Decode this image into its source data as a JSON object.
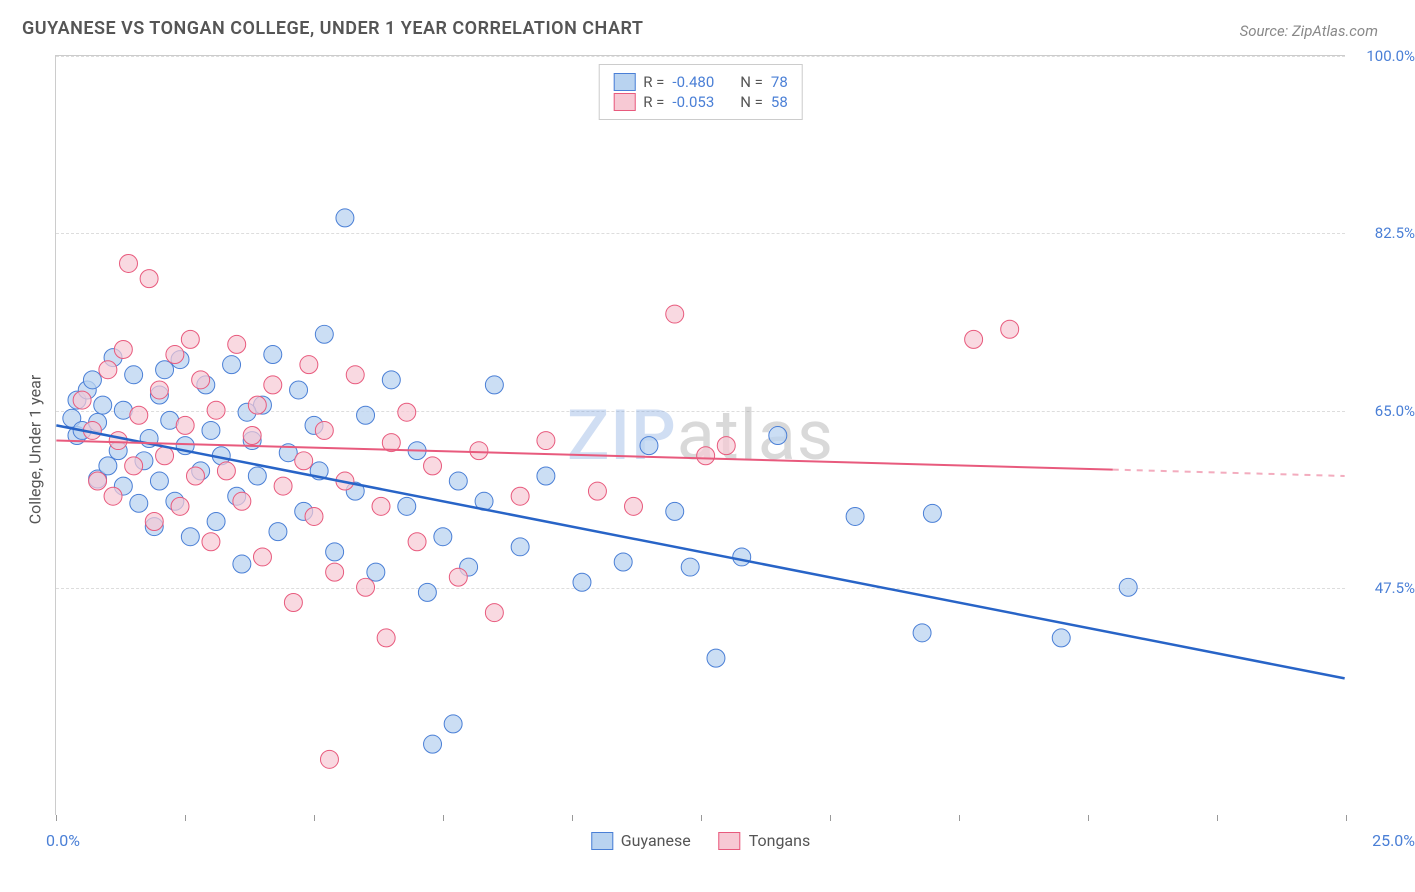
{
  "title": "GUYANESE VS TONGAN COLLEGE, UNDER 1 YEAR CORRELATION CHART",
  "source": "Source: ZipAtlas.com",
  "y_axis_label": "College, Under 1 year",
  "watermark_zip": "ZIP",
  "watermark_atlas": "atlas",
  "chart": {
    "type": "scatter",
    "background_color": "#ffffff",
    "grid_color": "#dddddd",
    "border_color": "#cccccc",
    "xlim": [
      0,
      25
    ],
    "ylim": [
      25,
      100
    ],
    "x_tick_positions": [
      0,
      2.5,
      5,
      7.5,
      10,
      12.5,
      15,
      17.5,
      20,
      22.5,
      25
    ],
    "x_axis_labels": {
      "left": "0.0%",
      "right": "25.0%"
    },
    "y_gridlines": [
      47.5,
      65.0,
      82.5,
      100.0
    ],
    "y_tick_labels": [
      "47.5%",
      "65.0%",
      "82.5%",
      "100.0%"
    ],
    "series": [
      {
        "name": "Guyanese",
        "marker_fill": "#b9d3f0",
        "marker_stroke": "#4a7fd6",
        "marker_radius": 9,
        "marker_opacity": 0.75,
        "line_color": "#2864c7",
        "line_width": 2.5,
        "trend": {
          "x0": 0,
          "y0": 63.5,
          "x1": 25,
          "y1": 38.5,
          "dash_after_x": null
        },
        "R_label": "R =",
        "R_value": "-0.480",
        "N_label": "N =",
        "N_value": "78",
        "points": [
          [
            0.3,
            64.2
          ],
          [
            0.4,
            66.0
          ],
          [
            0.4,
            62.5
          ],
          [
            0.5,
            63.0
          ],
          [
            0.6,
            67.0
          ],
          [
            0.7,
            68.0
          ],
          [
            0.8,
            63.8
          ],
          [
            0.8,
            58.2
          ],
          [
            0.9,
            65.5
          ],
          [
            1.0,
            59.5
          ],
          [
            1.1,
            70.2
          ],
          [
            1.2,
            61.0
          ],
          [
            1.3,
            57.5
          ],
          [
            1.3,
            65.0
          ],
          [
            1.5,
            68.5
          ],
          [
            1.6,
            55.8
          ],
          [
            1.7,
            60.0
          ],
          [
            1.8,
            62.2
          ],
          [
            1.9,
            53.5
          ],
          [
            2.0,
            66.5
          ],
          [
            2.0,
            58.0
          ],
          [
            2.2,
            64.0
          ],
          [
            2.3,
            56.0
          ],
          [
            2.4,
            70.0
          ],
          [
            2.5,
            61.5
          ],
          [
            2.6,
            52.5
          ],
          [
            2.8,
            59.0
          ],
          [
            2.9,
            67.5
          ],
          [
            3.0,
            63.0
          ],
          [
            3.1,
            54.0
          ],
          [
            3.2,
            60.5
          ],
          [
            3.4,
            69.5
          ],
          [
            3.5,
            56.5
          ],
          [
            3.6,
            49.8
          ],
          [
            3.8,
            62.0
          ],
          [
            3.9,
            58.5
          ],
          [
            4.0,
            65.5
          ],
          [
            4.2,
            70.5
          ],
          [
            4.3,
            53.0
          ],
          [
            4.5,
            60.8
          ],
          [
            4.7,
            67.0
          ],
          [
            4.8,
            55.0
          ],
          [
            5.0,
            63.5
          ],
          [
            5.1,
            59.0
          ],
          [
            5.2,
            72.5
          ],
          [
            5.4,
            51.0
          ],
          [
            5.6,
            84.0
          ],
          [
            5.8,
            57.0
          ],
          [
            6.0,
            64.5
          ],
          [
            6.2,
            49.0
          ],
          [
            6.5,
            68.0
          ],
          [
            6.8,
            55.5
          ],
          [
            7.0,
            61.0
          ],
          [
            7.2,
            47.0
          ],
          [
            7.5,
            52.5
          ],
          [
            7.7,
            34.0
          ],
          [
            7.8,
            58.0
          ],
          [
            8.0,
            49.5
          ],
          [
            8.3,
            56.0
          ],
          [
            8.5,
            67.5
          ],
          [
            9.0,
            51.5
          ],
          [
            9.5,
            58.5
          ],
          [
            10.2,
            48.0
          ],
          [
            11.0,
            50.0
          ],
          [
            11.5,
            61.5
          ],
          [
            12.0,
            55.0
          ],
          [
            12.3,
            49.5
          ],
          [
            12.8,
            40.5
          ],
          [
            13.3,
            50.5
          ],
          [
            14.0,
            62.5
          ],
          [
            15.5,
            54.5
          ],
          [
            16.8,
            43.0
          ],
          [
            17.0,
            54.8
          ],
          [
            19.5,
            42.5
          ],
          [
            20.8,
            47.5
          ],
          [
            7.3,
            32.0
          ],
          [
            3.7,
            64.8
          ],
          [
            2.1,
            69.0
          ]
        ]
      },
      {
        "name": "Tongans",
        "marker_fill": "#f7c9d4",
        "marker_stroke": "#e85a7d",
        "marker_radius": 9,
        "marker_opacity": 0.7,
        "line_color": "#e85a7d",
        "line_width": 2,
        "trend": {
          "x0": 0,
          "y0": 62.0,
          "x1": 25,
          "y1": 58.5,
          "dash_after_x": 20.5
        },
        "R_label": "R =",
        "R_value": "-0.053",
        "N_label": "N =",
        "N_value": "58",
        "points": [
          [
            0.5,
            66.0
          ],
          [
            0.7,
            63.0
          ],
          [
            0.8,
            58.0
          ],
          [
            1.0,
            69.0
          ],
          [
            1.1,
            56.5
          ],
          [
            1.2,
            62.0
          ],
          [
            1.3,
            71.0
          ],
          [
            1.4,
            79.5
          ],
          [
            1.5,
            59.5
          ],
          [
            1.6,
            64.5
          ],
          [
            1.8,
            78.0
          ],
          [
            1.9,
            54.0
          ],
          [
            2.0,
            67.0
          ],
          [
            2.1,
            60.5
          ],
          [
            2.3,
            70.5
          ],
          [
            2.4,
            55.5
          ],
          [
            2.5,
            63.5
          ],
          [
            2.7,
            58.5
          ],
          [
            2.8,
            68.0
          ],
          [
            3.0,
            52.0
          ],
          [
            3.1,
            65.0
          ],
          [
            3.3,
            59.0
          ],
          [
            3.5,
            71.5
          ],
          [
            3.6,
            56.0
          ],
          [
            3.8,
            62.5
          ],
          [
            4.0,
            50.5
          ],
          [
            4.2,
            67.5
          ],
          [
            4.4,
            57.5
          ],
          [
            4.6,
            46.0
          ],
          [
            4.8,
            60.0
          ],
          [
            5.0,
            54.5
          ],
          [
            5.2,
            63.0
          ],
          [
            5.4,
            49.0
          ],
          [
            5.3,
            30.5
          ],
          [
            5.6,
            58.0
          ],
          [
            5.8,
            68.5
          ],
          [
            6.0,
            47.5
          ],
          [
            6.3,
            55.5
          ],
          [
            6.4,
            42.5
          ],
          [
            6.8,
            64.8
          ],
          [
            7.0,
            52.0
          ],
          [
            7.3,
            59.5
          ],
          [
            7.8,
            48.5
          ],
          [
            8.2,
            61.0
          ],
          [
            8.5,
            45.0
          ],
          [
            9.0,
            56.5
          ],
          [
            9.5,
            62.0
          ],
          [
            10.5,
            57.0
          ],
          [
            11.2,
            55.5
          ],
          [
            12.0,
            74.5
          ],
          [
            12.6,
            60.5
          ],
          [
            13.0,
            61.5
          ],
          [
            17.8,
            72.0
          ],
          [
            18.5,
            73.0
          ],
          [
            4.9,
            69.5
          ],
          [
            2.6,
            72.0
          ],
          [
            3.9,
            65.5
          ],
          [
            6.5,
            61.8
          ]
        ]
      }
    ]
  },
  "colors": {
    "title_color": "#555555",
    "source_color": "#888888",
    "axis_value_color": "#4a7fd6"
  }
}
